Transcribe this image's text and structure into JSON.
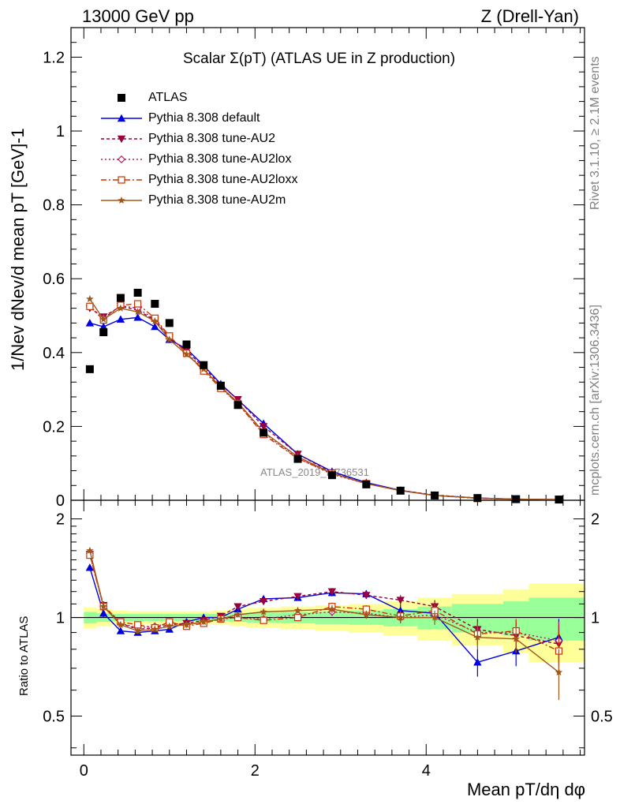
{
  "header": {
    "left": "13000 GeV pp",
    "right": "Z (Drell-Yan)"
  },
  "side_text": {
    "rivet": "Rivet 3.1.10, ≥ 2.1M events",
    "mcplots": "mcplots.cern.ch [arXiv:1306.3436]"
  },
  "colors": {
    "atlas": "#000000",
    "default": "#0000e0",
    "au2": "#99003d",
    "au2lox": "#b0205a",
    "au2loxx": "#cc3300",
    "au2m": "#a0581a",
    "band_yellow": "#ffff99",
    "band_green": "#99ff99"
  },
  "chart_data": [
    {
      "type": "line",
      "title": "Scalar Σ(pT) (ATLAS UE in Z production)",
      "ylabel": "1/Nev dNev/d mean pT [GeV]-1",
      "watermark": "ATLAS_2019_I1736531",
      "xlim": [
        -0.15,
        5.85
      ],
      "ylim": [
        0,
        1.28
      ],
      "yticks": [
        "0",
        "0.2",
        "0.4",
        "0.6",
        "0.8",
        "1",
        "1.2"
      ],
      "x": [
        0.07,
        0.23,
        0.43,
        0.63,
        0.83,
        1.0,
        1.2,
        1.4,
        1.6,
        1.8,
        2.1,
        2.5,
        2.9,
        3.3,
        3.7,
        4.1,
        4.6,
        5.05,
        5.55
      ],
      "series": [
        {
          "name": "ATLAS",
          "values": [
            0.355,
            0.455,
            0.548,
            0.562,
            0.532,
            0.48,
            0.422,
            0.366,
            0.31,
            0.258,
            0.183,
            0.112,
            0.068,
            0.043,
            0.026,
            0.013,
            0.006,
            0.003,
            0.002
          ]
        },
        {
          "name": "Pythia 8.308 default",
          "values": [
            0.48,
            0.47,
            0.49,
            0.495,
            0.47,
            0.435,
            0.41,
            0.365,
            0.315,
            0.272,
            0.208,
            0.125,
            0.078,
            0.048,
            0.027,
            0.013,
            0.006,
            0.003,
            0.002
          ]
        },
        {
          "name": "Pythia 8.308 tune-AU2",
          "values": [
            0.52,
            0.497,
            0.525,
            0.515,
            0.487,
            0.44,
            0.405,
            0.36,
            0.312,
            0.273,
            0.2,
            0.125,
            0.075,
            0.045,
            0.027,
            0.014,
            0.006,
            0.003,
            0.002
          ]
        },
        {
          "name": "Pythia 8.308 tune-AU2lox",
          "values": [
            0.525,
            0.493,
            0.527,
            0.52,
            0.49,
            0.443,
            0.4,
            0.355,
            0.306,
            0.262,
            0.183,
            0.114,
            0.07,
            0.045,
            0.026,
            0.013,
            0.006,
            0.003,
            0.002
          ]
        },
        {
          "name": "Pythia 8.308 tune-AU2loxx",
          "values": [
            0.525,
            0.488,
            0.528,
            0.532,
            0.493,
            0.445,
            0.398,
            0.35,
            0.303,
            0.262,
            0.178,
            0.113,
            0.073,
            0.045,
            0.026,
            0.013,
            0.005,
            0.003,
            0.002
          ]
        },
        {
          "name": "Pythia 8.308 tune-AU2m",
          "values": [
            0.545,
            0.49,
            0.52,
            0.51,
            0.485,
            0.435,
            0.395,
            0.355,
            0.307,
            0.265,
            0.185,
            0.118,
            0.073,
            0.045,
            0.026,
            0.013,
            0.006,
            0.003,
            0.002
          ]
        }
      ]
    },
    {
      "type": "line",
      "ylabel": "Ratio to ATLAS",
      "xlabel": "Mean pT/dη dφ",
      "xlim": [
        -0.15,
        5.85
      ],
      "ylim": [
        0.38,
        2.28
      ],
      "yticks": [
        "0.5",
        "1",
        "2"
      ],
      "xticks": [
        "0",
        "2",
        "4"
      ],
      "x": [
        0.07,
        0.23,
        0.43,
        0.63,
        0.83,
        1.0,
        1.2,
        1.4,
        1.6,
        1.8,
        2.1,
        2.5,
        2.9,
        3.3,
        3.7,
        4.1,
        4.6,
        5.05,
        5.55
      ],
      "bin_edges": [
        0.0,
        0.15,
        0.32,
        0.53,
        0.73,
        0.93,
        1.1,
        1.3,
        1.5,
        1.7,
        1.9,
        2.3,
        2.7,
        3.1,
        3.5,
        3.9,
        4.3,
        4.9,
        5.2,
        5.85
      ],
      "band_yellow_halfwidth": [
        0.075,
        0.06,
        0.05,
        0.045,
        0.045,
        0.045,
        0.045,
        0.045,
        0.05,
        0.06,
        0.07,
        0.08,
        0.09,
        0.1,
        0.12,
        0.15,
        0.18,
        0.22,
        0.27
      ],
      "band_green_halfwidth": [
        0.04,
        0.03,
        0.025,
        0.025,
        0.025,
        0.025,
        0.025,
        0.025,
        0.025,
        0.03,
        0.035,
        0.04,
        0.045,
        0.05,
        0.06,
        0.08,
        0.1,
        0.12,
        0.15
      ],
      "series": [
        {
          "name": "Pythia 8.308 default",
          "values": [
            1.42,
            1.03,
            0.91,
            0.9,
            0.91,
            0.92,
            0.97,
            1.0,
            1.0,
            1.06,
            1.14,
            1.15,
            1.19,
            1.18,
            1.05,
            1.03,
            0.73,
            0.79,
            0.87
          ]
        },
        {
          "name": "Pythia 8.308 tune-AU2",
          "values": [
            1.56,
            1.09,
            0.96,
            0.92,
            0.93,
            0.95,
            0.96,
            0.98,
            1.01,
            1.08,
            1.12,
            1.16,
            1.2,
            1.17,
            1.13,
            1.08,
            0.92,
            0.88,
            0.83
          ]
        },
        {
          "name": "Pythia 8.308 tune-AU2lox",
          "values": [
            1.57,
            1.08,
            0.96,
            0.93,
            0.94,
            0.96,
            0.95,
            0.97,
            0.99,
            1.0,
            0.99,
            1.02,
            1.04,
            1.03,
            1.0,
            1.02,
            0.9,
            0.9,
            0.85
          ]
        },
        {
          "name": "Pythia 8.308 tune-AU2loxx",
          "values": [
            1.55,
            1.08,
            0.97,
            0.95,
            0.93,
            0.97,
            0.94,
            0.96,
            0.99,
            1.0,
            0.98,
            1.0,
            1.08,
            1.06,
            1.01,
            1.05,
            0.89,
            0.91,
            0.79
          ]
        },
        {
          "name": "Pythia 8.308 tune-AU2m",
          "values": [
            1.6,
            1.08,
            0.95,
            0.91,
            0.92,
            0.94,
            0.95,
            0.97,
            0.99,
            1.02,
            1.04,
            1.05,
            1.06,
            1.02,
            1.0,
            1.0,
            0.87,
            0.86,
            0.68
          ]
        }
      ],
      "error_halfwidth": [
        0.03,
        0.03,
        0.02,
        0.02,
        0.02,
        0.02,
        0.02,
        0.02,
        0.02,
        0.02,
        0.02,
        0.02,
        0.03,
        0.03,
        0.04,
        0.05,
        0.07,
        0.08,
        0.12
      ]
    }
  ]
}
